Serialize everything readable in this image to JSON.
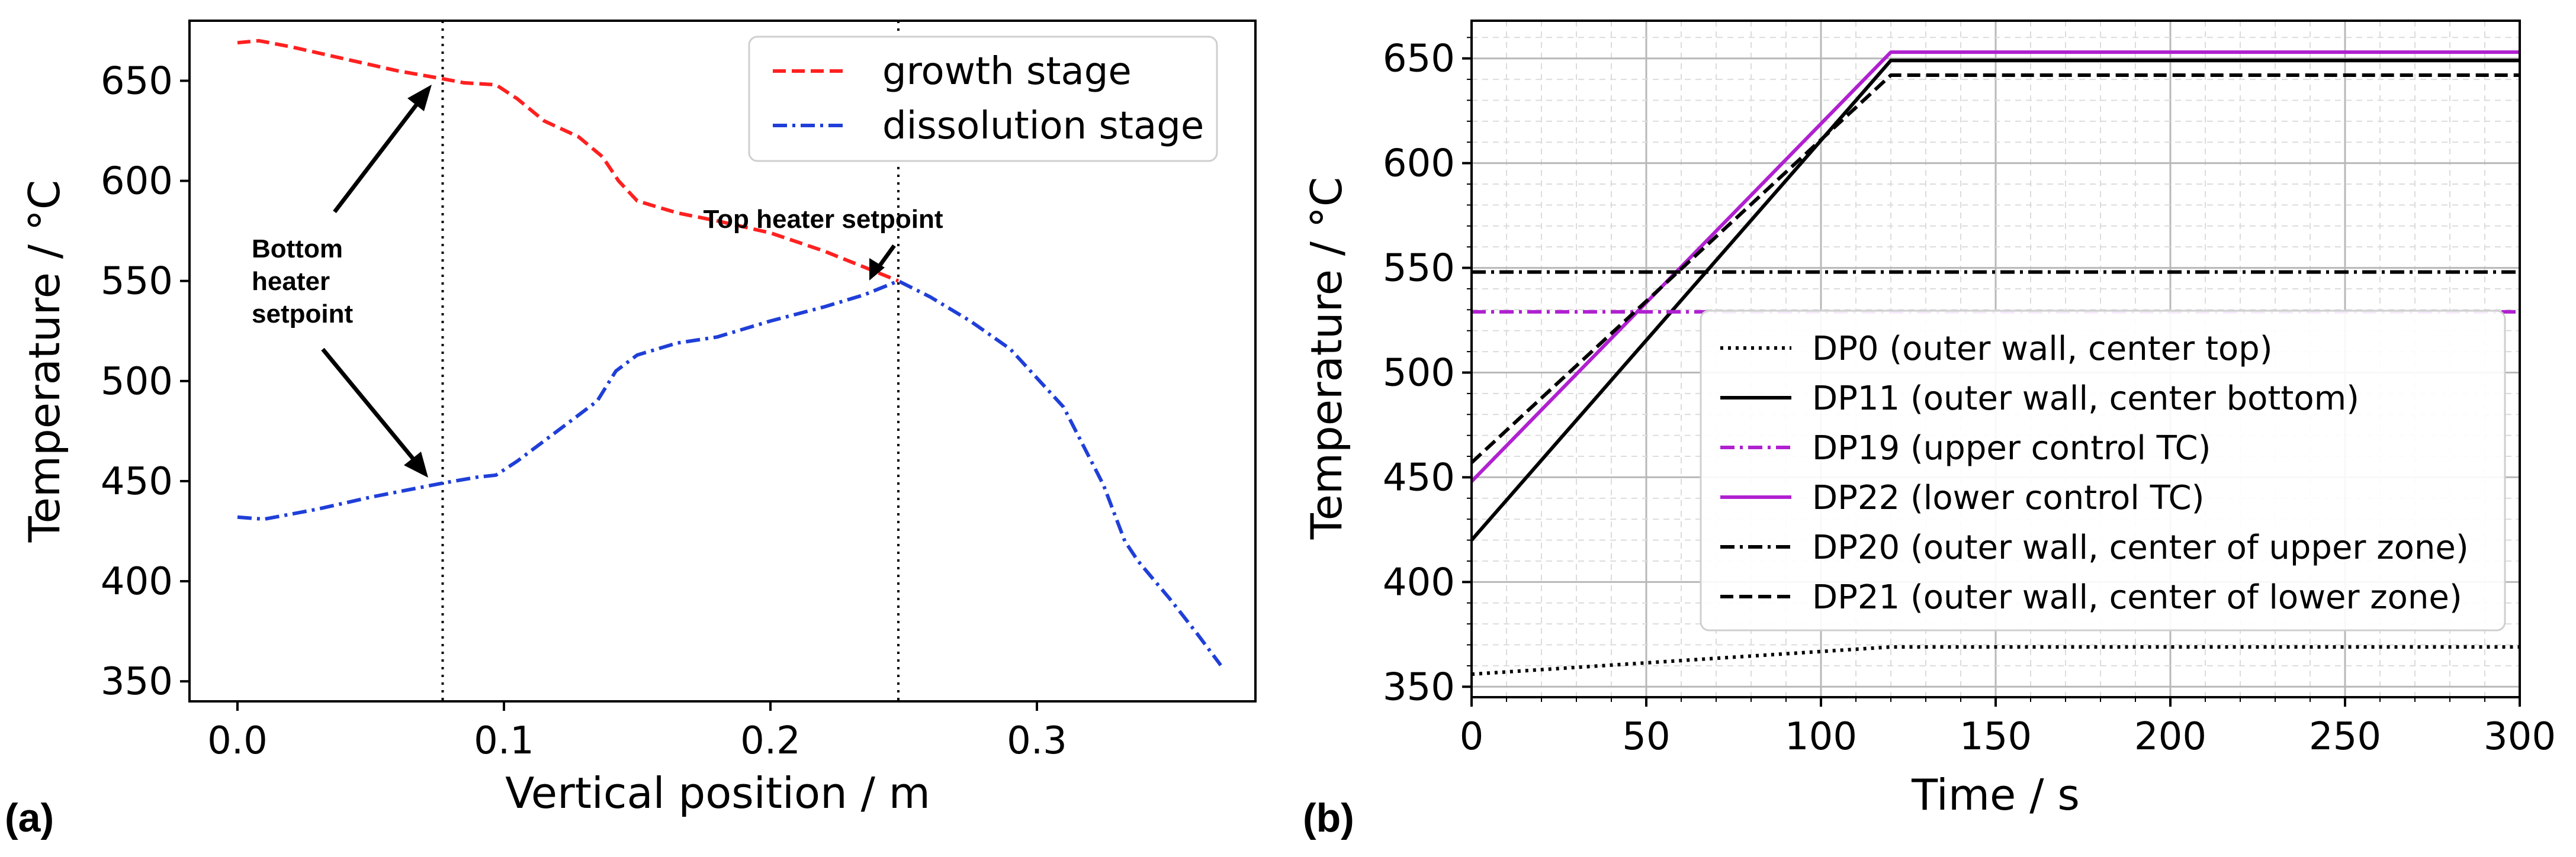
{
  "panels": [
    {
      "panel_label": "(a)",
      "annotations": {
        "bottom_heater": [
          "Bottom",
          "heater",
          "setpoint"
        ],
        "top_heater": "Top heater setpoint"
      }
    },
    {
      "panel_label": "(b)"
    }
  ],
  "chart_data": [
    {
      "type": "line",
      "title": "",
      "xlabel": "Vertical position / m",
      "ylabel": "Temperature / °C",
      "xlim": [
        -0.018,
        0.382
      ],
      "ylim": [
        340,
        680
      ],
      "xticks": [
        0.0,
        0.1,
        0.2,
        0.3
      ],
      "xtick_labels": [
        "0.0",
        "0.1",
        "0.2",
        "0.3"
      ],
      "yticks": [
        350,
        400,
        450,
        500,
        550,
        600,
        650
      ],
      "ytick_labels": [
        "350",
        "400",
        "450",
        "500",
        "550",
        "600",
        "650"
      ],
      "grid": false,
      "legend_position": "top-right",
      "vlines": [
        0.077,
        0.248
      ],
      "series": [
        {
          "name": "growth stage",
          "color": "#ff2020",
          "style": "dashed",
          "x": [
            0.0,
            0.008,
            0.02,
            0.04,
            0.06,
            0.077,
            0.085,
            0.097,
            0.105,
            0.115,
            0.128,
            0.137,
            0.143,
            0.15,
            0.165,
            0.18,
            0.2,
            0.22,
            0.235,
            0.248
          ],
          "y": [
            669,
            670,
            667,
            661,
            655,
            651,
            649,
            648,
            641,
            630,
            622,
            612,
            600,
            590,
            584,
            580,
            574,
            565,
            557,
            550
          ]
        },
        {
          "name": "dissolution stage",
          "color": "#1f3fd8",
          "style": "dashdot",
          "x": [
            0.0,
            0.01,
            0.03,
            0.05,
            0.077,
            0.09,
            0.097,
            0.105,
            0.115,
            0.125,
            0.135,
            0.142,
            0.15,
            0.165,
            0.18,
            0.2,
            0.22,
            0.235,
            0.248,
            0.26,
            0.275,
            0.29,
            0.31,
            0.325,
            0.333,
            0.338,
            0.35,
            0.36,
            0.369
          ],
          "y": [
            432,
            431,
            436,
            442,
            449,
            452,
            453,
            460,
            470,
            480,
            490,
            505,
            513,
            519,
            522,
            530,
            537,
            543,
            550,
            542,
            530,
            516,
            487,
            448,
            420,
            410,
            391,
            374,
            358
          ]
        }
      ]
    },
    {
      "type": "line",
      "title": "",
      "xlabel": "Time / s",
      "ylabel": "Temperature / °C",
      "xlim": [
        0,
        300
      ],
      "ylim": [
        345,
        668
      ],
      "xticks": [
        0,
        50,
        100,
        150,
        200,
        250,
        300
      ],
      "xtick_labels": [
        "0",
        "50",
        "100",
        "150",
        "200",
        "250",
        "300"
      ],
      "yticks": [
        350,
        400,
        450,
        500,
        550,
        600,
        650
      ],
      "ytick_labels": [
        "350",
        "400",
        "450",
        "500",
        "550",
        "600",
        "650"
      ],
      "grid": true,
      "legend_position": "lower-right",
      "series": [
        {
          "name": "DP0 (outer wall, center top)",
          "color": "#000000",
          "style": "dotted",
          "x": [
            0,
            120,
            300
          ],
          "y": [
            356,
            369,
            369
          ]
        },
        {
          "name": "DP11 (outer wall, center bottom)",
          "color": "#000000",
          "style": "solid",
          "x": [
            0,
            120,
            300
          ],
          "y": [
            420,
            649,
            649
          ]
        },
        {
          "name": "DP19 (upper control TC)",
          "color": "#b020d0",
          "style": "dashdot",
          "x": [
            0,
            300
          ],
          "y": [
            529,
            529
          ]
        },
        {
          "name": "DP22 (lower control TC)",
          "color": "#b020d0",
          "style": "solid",
          "x": [
            0,
            120,
            300
          ],
          "y": [
            448,
            653,
            653
          ]
        },
        {
          "name": "DP20 (outer wall, center of upper zone)",
          "color": "#000000",
          "style": "dashdot",
          "x": [
            0,
            300
          ],
          "y": [
            548,
            548
          ]
        },
        {
          "name": "DP21 (outer wall, center of lower zone)",
          "color": "#000000",
          "style": "dashed",
          "x": [
            0,
            120,
            300
          ],
          "y": [
            457,
            642,
            642
          ]
        }
      ]
    }
  ]
}
